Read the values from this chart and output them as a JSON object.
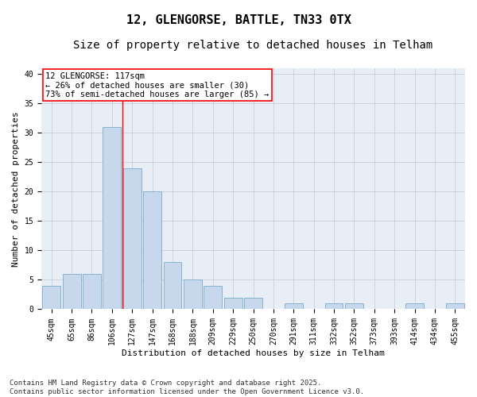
{
  "title_line1": "12, GLENGORSE, BATTLE, TN33 0TX",
  "title_line2": "Size of property relative to detached houses in Telham",
  "xlabel": "Distribution of detached houses by size in Telham",
  "ylabel": "Number of detached properties",
  "categories": [
    "45sqm",
    "65sqm",
    "86sqm",
    "106sqm",
    "127sqm",
    "147sqm",
    "168sqm",
    "188sqm",
    "209sqm",
    "229sqm",
    "250sqm",
    "270sqm",
    "291sqm",
    "311sqm",
    "332sqm",
    "352sqm",
    "373sqm",
    "393sqm",
    "414sqm",
    "434sqm",
    "455sqm"
  ],
  "values": [
    4,
    6,
    6,
    31,
    24,
    20,
    8,
    5,
    4,
    2,
    2,
    0,
    1,
    0,
    1,
    1,
    0,
    0,
    1,
    0,
    1
  ],
  "bar_color": "#c8d8ec",
  "bar_edge_color": "#7aaac8",
  "grid_color": "#c8d0dc",
  "background_color": "#e8eef6",
  "annotation_text": "12 GLENGORSE: 117sqm\n← 26% of detached houses are smaller (30)\n73% of semi-detached houses are larger (85) →",
  "redline_x": 3.5,
  "ylim": [
    0,
    41
  ],
  "yticks": [
    0,
    5,
    10,
    15,
    20,
    25,
    30,
    35,
    40
  ],
  "footnote": "Contains HM Land Registry data © Crown copyright and database right 2025.\nContains public sector information licensed under the Open Government Licence v3.0.",
  "title_fontsize": 11,
  "subtitle_fontsize": 10,
  "axis_label_fontsize": 8,
  "tick_fontsize": 7,
  "annotation_fontsize": 7.5,
  "footnote_fontsize": 6.5
}
